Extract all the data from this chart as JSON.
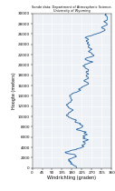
{
  "title": "Sonde data: Department of Atmospheric Science, University of Wyoming",
  "xlabel": "Windrichting (graden)",
  "ylabel": "Hoogte (meters)",
  "xlim": [
    0,
    360
  ],
  "ylim": [
    0,
    30000
  ],
  "xticks": [
    0,
    45,
    90,
    135,
    180,
    225,
    270,
    315,
    360
  ],
  "yticks": [
    0,
    2000,
    4000,
    6000,
    8000,
    10000,
    12000,
    14000,
    16000,
    18000,
    20000,
    22000,
    24000,
    26000,
    28000,
    30000
  ],
  "line_color": "#2060a0",
  "line_width": 0.6,
  "background_color": "#eef2f7",
  "grid_color": "#ffffff",
  "title_fontsize": 2.5,
  "label_fontsize": 3.5,
  "tick_fontsize": 3.0,
  "wind_data": [
    [
      0,
      200
    ],
    [
      200,
      200
    ],
    [
      300,
      200
    ],
    [
      400,
      195
    ],
    [
      500,
      190
    ],
    [
      600,
      185
    ],
    [
      700,
      185
    ],
    [
      800,
      175
    ],
    [
      900,
      175
    ],
    [
      1000,
      180
    ],
    [
      1100,
      175
    ],
    [
      1200,
      170
    ],
    [
      1300,
      175
    ],
    [
      1400,
      165
    ],
    [
      1500,
      170
    ],
    [
      1600,
      165
    ],
    [
      1700,
      165
    ],
    [
      1800,
      175
    ],
    [
      1900,
      180
    ],
    [
      2000,
      185
    ],
    [
      2100,
      190
    ],
    [
      2200,
      200
    ],
    [
      2300,
      200
    ],
    [
      2400,
      195
    ],
    [
      2500,
      195
    ],
    [
      2600,
      195
    ],
    [
      2700,
      180
    ],
    [
      2800,
      165
    ],
    [
      2900,
      155
    ],
    [
      3000,
      150
    ],
    [
      3100,
      150
    ],
    [
      3200,
      165
    ],
    [
      3300,
      170
    ],
    [
      3400,
      175
    ],
    [
      3500,
      185
    ],
    [
      3600,
      200
    ],
    [
      3700,
      200
    ],
    [
      3800,
      210
    ],
    [
      3900,
      220
    ],
    [
      4000,
      225
    ],
    [
      4100,
      230
    ],
    [
      4200,
      235
    ],
    [
      4300,
      230
    ],
    [
      4400,
      225
    ],
    [
      4500,
      230
    ],
    [
      4600,
      235
    ],
    [
      4700,
      240
    ],
    [
      4800,
      240
    ],
    [
      4900,
      240
    ],
    [
      5000,
      235
    ],
    [
      5100,
      230
    ],
    [
      5200,
      235
    ],
    [
      5300,
      245
    ],
    [
      5400,
      250
    ],
    [
      5500,
      255
    ],
    [
      5600,
      245
    ],
    [
      5700,
      235
    ],
    [
      5800,
      230
    ],
    [
      5900,
      235
    ],
    [
      6000,
      240
    ],
    [
      6100,
      235
    ],
    [
      6200,
      230
    ],
    [
      6300,
      235
    ],
    [
      6400,
      240
    ],
    [
      6500,
      250
    ],
    [
      6600,
      245
    ],
    [
      6700,
      240
    ],
    [
      6800,
      235
    ],
    [
      6900,
      240
    ],
    [
      7000,
      245
    ],
    [
      7100,
      230
    ],
    [
      7200,
      225
    ],
    [
      7300,
      215
    ],
    [
      7400,
      205
    ],
    [
      7500,
      200
    ],
    [
      7600,
      205
    ],
    [
      7700,
      215
    ],
    [
      7800,
      220
    ],
    [
      7900,
      225
    ],
    [
      8000,
      225
    ],
    [
      8100,
      230
    ],
    [
      8200,
      230
    ],
    [
      8300,
      225
    ],
    [
      8400,
      220
    ],
    [
      8500,
      215
    ],
    [
      8600,
      220
    ],
    [
      8700,
      215
    ],
    [
      8800,
      205
    ],
    [
      8900,
      195
    ],
    [
      9000,
      195
    ],
    [
      9100,
      195
    ],
    [
      9200,
      200
    ],
    [
      9300,
      200
    ],
    [
      9400,
      195
    ],
    [
      9500,
      185
    ],
    [
      9600,
      180
    ],
    [
      9700,
      175
    ],
    [
      9800,
      170
    ],
    [
      9900,
      165
    ],
    [
      10000,
      165
    ],
    [
      10100,
      160
    ],
    [
      10200,
      155
    ],
    [
      10300,
      155
    ],
    [
      10400,
      160
    ],
    [
      10500,
      165
    ],
    [
      10600,
      165
    ],
    [
      10700,
      165
    ],
    [
      10800,
      170
    ],
    [
      10900,
      175
    ],
    [
      11000,
      175
    ],
    [
      11100,
      180
    ],
    [
      11200,
      185
    ],
    [
      11300,
      185
    ],
    [
      11400,
      180
    ],
    [
      11500,
      175
    ],
    [
      11600,
      170
    ],
    [
      11700,
      165
    ],
    [
      11800,
      165
    ],
    [
      11900,
      165
    ],
    [
      12000,
      160
    ],
    [
      12100,
      160
    ],
    [
      12200,
      155
    ],
    [
      12300,
      155
    ],
    [
      12400,
      160
    ],
    [
      12500,
      165
    ],
    [
      12600,
      165
    ],
    [
      12700,
      170
    ],
    [
      12800,
      175
    ],
    [
      12900,
      175
    ],
    [
      13000,
      175
    ],
    [
      13100,
      180
    ],
    [
      13200,
      180
    ],
    [
      13300,
      180
    ],
    [
      13400,
      175
    ],
    [
      13500,
      175
    ],
    [
      13600,
      175
    ],
    [
      13700,
      175
    ],
    [
      13800,
      175
    ],
    [
      13900,
      170
    ],
    [
      14000,
      170
    ],
    [
      14100,
      170
    ],
    [
      14200,
      175
    ],
    [
      14300,
      180
    ],
    [
      14400,
      180
    ],
    [
      14500,
      185
    ],
    [
      14600,
      190
    ],
    [
      14700,
      200
    ],
    [
      14800,
      205
    ],
    [
      14900,
      210
    ],
    [
      15000,
      215
    ],
    [
      15100,
      220
    ],
    [
      15200,
      215
    ],
    [
      15300,
      210
    ],
    [
      15400,
      215
    ],
    [
      15500,
      220
    ],
    [
      15600,
      225
    ],
    [
      15700,
      225
    ],
    [
      15800,
      230
    ],
    [
      15900,
      235
    ],
    [
      16000,
      240
    ],
    [
      16100,
      245
    ],
    [
      16200,
      250
    ],
    [
      16300,
      255
    ],
    [
      16400,
      255
    ],
    [
      16500,
      255
    ],
    [
      16600,
      250
    ],
    [
      16700,
      245
    ],
    [
      16800,
      240
    ],
    [
      16900,
      235
    ],
    [
      17000,
      235
    ],
    [
      17100,
      240
    ],
    [
      17200,
      245
    ],
    [
      17300,
      250
    ],
    [
      17400,
      255
    ],
    [
      17500,
      255
    ],
    [
      17600,
      255
    ],
    [
      17700,
      250
    ],
    [
      17800,
      245
    ],
    [
      17900,
      245
    ],
    [
      18000,
      245
    ],
    [
      18100,
      250
    ],
    [
      18200,
      255
    ],
    [
      18300,
      255
    ],
    [
      18400,
      250
    ],
    [
      18500,
      245
    ],
    [
      18600,
      245
    ],
    [
      18700,
      245
    ],
    [
      18800,
      255
    ],
    [
      18900,
      255
    ],
    [
      19000,
      255
    ],
    [
      19100,
      255
    ],
    [
      19200,
      250
    ],
    [
      19300,
      245
    ],
    [
      19400,
      240
    ],
    [
      19500,
      240
    ],
    [
      19600,
      240
    ],
    [
      19700,
      235
    ],
    [
      19800,
      230
    ],
    [
      19900,
      235
    ],
    [
      20000,
      240
    ],
    [
      20100,
      240
    ],
    [
      20200,
      250
    ],
    [
      20300,
      255
    ],
    [
      20400,
      260
    ],
    [
      20500,
      270
    ],
    [
      20600,
      275
    ],
    [
      20700,
      265
    ],
    [
      20800,
      255
    ],
    [
      20900,
      250
    ],
    [
      21000,
      245
    ],
    [
      21100,
      240
    ],
    [
      21200,
      240
    ],
    [
      21300,
      245
    ],
    [
      21400,
      250
    ],
    [
      21500,
      260
    ],
    [
      21600,
      270
    ],
    [
      21700,
      275
    ],
    [
      21800,
      280
    ],
    [
      21900,
      280
    ],
    [
      22000,
      275
    ],
    [
      22100,
      270
    ],
    [
      22200,
      270
    ],
    [
      22300,
      270
    ],
    [
      22400,
      265
    ],
    [
      22500,
      260
    ],
    [
      22600,
      255
    ],
    [
      22700,
      260
    ],
    [
      22800,
      260
    ],
    [
      22900,
      265
    ],
    [
      23000,
      270
    ],
    [
      23100,
      270
    ],
    [
      23200,
      265
    ],
    [
      23300,
      260
    ],
    [
      23400,
      255
    ],
    [
      23500,
      255
    ],
    [
      23600,
      255
    ],
    [
      23700,
      255
    ],
    [
      23800,
      260
    ],
    [
      23900,
      260
    ],
    [
      24000,
      255
    ],
    [
      24100,
      250
    ],
    [
      24200,
      250
    ],
    [
      24300,
      255
    ],
    [
      24400,
      255
    ],
    [
      24500,
      250
    ],
    [
      24600,
      245
    ],
    [
      24700,
      245
    ],
    [
      24800,
      250
    ],
    [
      24900,
      255
    ],
    [
      25000,
      255
    ],
    [
      25100,
      250
    ],
    [
      25200,
      245
    ],
    [
      25300,
      240
    ],
    [
      25400,
      245
    ],
    [
      25500,
      250
    ],
    [
      25600,
      260
    ],
    [
      25700,
      270
    ],
    [
      25800,
      275
    ],
    [
      25900,
      280
    ],
    [
      26000,
      290
    ],
    [
      26100,
      295
    ],
    [
      26200,
      305
    ],
    [
      26300,
      310
    ],
    [
      26400,
      315
    ],
    [
      26500,
      320
    ],
    [
      26600,
      325
    ],
    [
      26700,
      330
    ],
    [
      26800,
      330
    ],
    [
      26900,
      330
    ],
    [
      27000,
      325
    ],
    [
      27100,
      320
    ],
    [
      27200,
      315
    ],
    [
      27300,
      315
    ],
    [
      27400,
      320
    ],
    [
      27500,
      325
    ],
    [
      27600,
      330
    ],
    [
      27700,
      335
    ],
    [
      27800,
      340
    ],
    [
      27900,
      340
    ],
    [
      28000,
      340
    ],
    [
      28100,
      335
    ],
    [
      28200,
      335
    ],
    [
      28300,
      330
    ],
    [
      28400,
      325
    ],
    [
      28500,
      330
    ],
    [
      28600,
      335
    ],
    [
      28700,
      340
    ],
    [
      28800,
      340
    ],
    [
      28900,
      340
    ],
    [
      29000,
      340
    ],
    [
      29100,
      340
    ],
    [
      29200,
      340
    ],
    [
      29300,
      340
    ],
    [
      29400,
      340
    ],
    [
      29500,
      335
    ],
    [
      29600,
      335
    ],
    [
      29700,
      330
    ],
    [
      29800,
      335
    ],
    [
      29900,
      335
    ],
    [
      30000,
      330
    ]
  ]
}
